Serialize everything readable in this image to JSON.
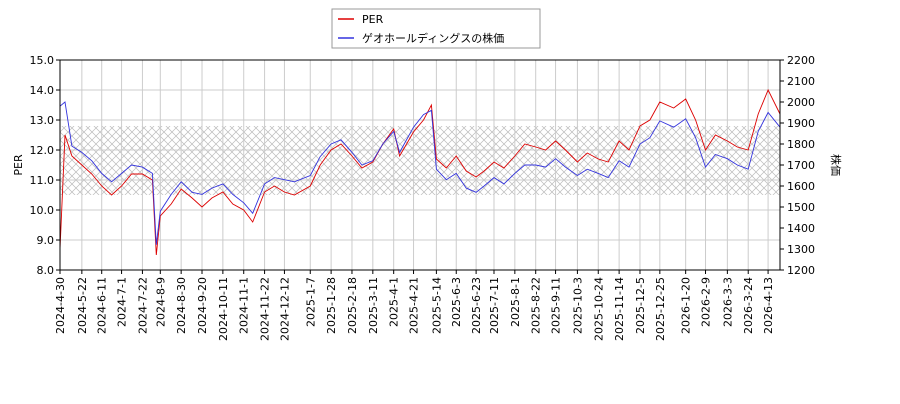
{
  "chart_data": {
    "type": "line",
    "y_label": "PER",
    "y2_label": "株価",
    "x": [
      "2024-4-30",
      "2024-5-5",
      "2024-5-12",
      "2024-5-22",
      "2024-6-1",
      "2024-6-11",
      "2024-6-21",
      "2024-7-1",
      "2024-7-11",
      "2024-7-22",
      "2024-8-1",
      "2024-8-5",
      "2024-8-9",
      "2024-8-20",
      "2024-8-30",
      "2024-9-10",
      "2024-9-20",
      "2024-9-30",
      "2024-10-11",
      "2024-10-21",
      "2024-11-1",
      "2024-11-10",
      "2024-11-22",
      "2024-12-2",
      "2024-12-12",
      "2024-12-22",
      "2025-1-7",
      "2025-1-17",
      "2025-1-28",
      "2025-2-7",
      "2025-2-18",
      "2025-2-28",
      "2025-3-11",
      "2025-3-21",
      "2025-4-1",
      "2025-4-7",
      "2025-4-21",
      "2025-5-1",
      "2025-5-9",
      "2025-5-14",
      "2025-5-24",
      "2025-6-3",
      "2025-6-13",
      "2025-6-23",
      "2025-7-1",
      "2025-7-11",
      "2025-7-21",
      "2025-8-1",
      "2025-8-11",
      "2025-8-22",
      "2025-9-1",
      "2025-9-11",
      "2025-9-21",
      "2025-10-3",
      "2025-10-13",
      "2025-10-24",
      "2025-11-3",
      "2025-11-14",
      "2025-11-24",
      "2025-12-5",
      "2025-12-15",
      "2025-12-25",
      "2026-1-8",
      "2026-1-20",
      "2026-1-30",
      "2026-2-9",
      "2026-2-19",
      "2026-3-3",
      "2026-3-13",
      "2026-3-24",
      "2026-4-3",
      "2026-4-13",
      "2026-4-25"
    ],
    "series": [
      {
        "name": "PER",
        "color": "#dd0000",
        "values": [
          8.7,
          12.5,
          11.8,
          11.5,
          11.2,
          10.8,
          10.5,
          10.8,
          11.2,
          11.2,
          11.0,
          8.5,
          9.8,
          10.2,
          10.7,
          10.4,
          10.1,
          10.4,
          10.6,
          10.2,
          10.0,
          9.6,
          10.6,
          10.8,
          10.6,
          10.5,
          10.8,
          11.5,
          12.0,
          12.2,
          11.8,
          11.4,
          11.6,
          12.2,
          12.7,
          11.8,
          12.6,
          13.0,
          13.5,
          11.7,
          11.4,
          11.8,
          11.3,
          11.1,
          11.3,
          11.6,
          11.4,
          11.8,
          12.2,
          12.1,
          12.0,
          12.3,
          12.0,
          11.6,
          11.9,
          11.7,
          11.6,
          12.3,
          12.0,
          12.8,
          13.0,
          13.6,
          13.4,
          13.7,
          13.0,
          12.0,
          12.5,
          12.3,
          12.1,
          12.0,
          13.2,
          14.0,
          13.2
        ]
      },
      {
        "name": "ゲオホールディングスの株価",
        "color": "#3333dd",
        "axis": "y2",
        "values": [
          1980,
          2000,
          1790,
          1760,
          1720,
          1660,
          1620,
          1660,
          1700,
          1690,
          1660,
          1320,
          1480,
          1560,
          1620,
          1570,
          1560,
          1590,
          1610,
          1560,
          1520,
          1470,
          1610,
          1640,
          1630,
          1620,
          1650,
          1740,
          1800,
          1820,
          1760,
          1700,
          1720,
          1800,
          1860,
          1760,
          1880,
          1940,
          1960,
          1680,
          1630,
          1660,
          1590,
          1570,
          1600,
          1640,
          1610,
          1660,
          1700,
          1700,
          1690,
          1730,
          1690,
          1650,
          1680,
          1660,
          1640,
          1720,
          1690,
          1800,
          1830,
          1910,
          1880,
          1920,
          1830,
          1690,
          1750,
          1730,
          1700,
          1680,
          1860,
          1950,
          1880
        ]
      }
    ],
    "band": [
      10.5,
      12.8
    ],
    "ylim": [
      8,
      15
    ],
    "yticks": [
      {
        "value": 8,
        "label": "8.0"
      },
      {
        "value": 9,
        "label": "9.0"
      },
      {
        "value": 10,
        "label": "10.0"
      },
      {
        "value": 11,
        "label": "11.0"
      },
      {
        "value": 12,
        "label": "12.0"
      },
      {
        "value": 13,
        "label": "13.0"
      },
      {
        "value": 14,
        "label": "14.0"
      },
      {
        "value": 15,
        "label": "15.0"
      }
    ],
    "y2lim": [
      1200,
      2200
    ],
    "y2ticks": [
      1200,
      1300,
      1400,
      1500,
      1600,
      1700,
      1800,
      1900,
      2000,
      2100,
      2200
    ],
    "xticks": [
      "2024-4-30",
      "2024-5-22",
      "2024-6-11",
      "2024-7-1",
      "2024-7-22",
      "2024-8-9",
      "2024-8-30",
      "2024-9-20",
      "2024-10-11",
      "2024-11-1",
      "2024-11-22",
      "2024-12-12",
      "2025-1-7",
      "2025-1-28",
      "2025-2-18",
      "2025-3-11",
      "2025-4-1",
      "2025-4-21",
      "2025-5-14",
      "2025-6-3",
      "2025-6-23",
      "2025-7-11",
      "2025-8-1",
      "2025-8-22",
      "2025-9-11",
      "2025-10-3",
      "2025-10-24",
      "2025-11-14",
      "2025-12-5",
      "2025-12-25",
      "2026-1-20",
      "2026-2-9",
      "2026-3-3",
      "2026-3-24",
      "2026-4-13"
    ],
    "grid": true,
    "legend": "top"
  }
}
